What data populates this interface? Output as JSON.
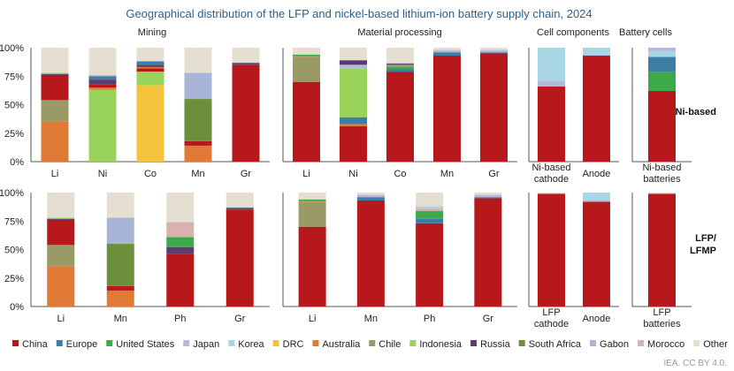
{
  "title": "Geographical distribution of the LFP and nickel-based lithium-ion battery supply chain, 2024",
  "credit": "IEA. CC BY 4.0.",
  "colors": {
    "China": "#b7181c",
    "Europe": "#3d7ea6",
    "United States": "#3caa4a",
    "Japan": "#b3b8dc",
    "Korea": "#a9d6e4",
    "DRC": "#f5c23c",
    "Australia": "#e07a34",
    "Chile": "#9a9a66",
    "Indonesia": "#9ad35a",
    "Russia": "#5b3c6e",
    "South Africa": "#6b8f3a",
    "Gabon": "#a8b5d6",
    "Morocco": "#d9b2b0",
    "Other": "#e4dfd0"
  },
  "legend": [
    "China",
    "Europe",
    "United States",
    "Japan",
    "Korea",
    "DRC",
    "Australia",
    "Chile",
    "Indonesia",
    "Russia",
    "South Africa",
    "Gabon",
    "Morocco",
    "Other"
  ],
  "row_labels": [
    "Ni-based",
    "LFP/\nLFMP"
  ],
  "chart_data": {
    "type": "bar",
    "stacked": true,
    "ylim": [
      0,
      100
    ],
    "yticks": [
      "0%",
      "25%",
      "50%",
      "75%",
      "100%"
    ],
    "sections": [
      "Mining",
      "Material processing",
      "Cell components",
      "Battery cells"
    ],
    "panels": [
      {
        "section": "Mining",
        "row": "Ni-based",
        "categories": [
          "Li",
          "Ni",
          "Co",
          "Mn",
          "Gr"
        ],
        "bars": [
          [
            [
              "Australia",
              35
            ],
            [
              "Chile",
              19
            ],
            [
              "China",
              22
            ],
            [
              "Russia",
              1
            ],
            [
              "Indonesia",
              1
            ],
            [
              "Other",
              22
            ]
          ],
          [
            [
              "Indonesia",
              63
            ],
            [
              "Australia",
              2
            ],
            [
              "China",
              3
            ],
            [
              "Russia",
              4
            ],
            [
              "Europe",
              3
            ],
            [
              "Japan",
              1
            ],
            [
              "Other",
              24
            ]
          ],
          [
            [
              "DRC",
              67
            ],
            [
              "Indonesia",
              12
            ],
            [
              "China",
              3
            ],
            [
              "Australia",
              1
            ],
            [
              "Russia",
              2
            ],
            [
              "Europe",
              3
            ],
            [
              "Other",
              12
            ]
          ],
          [
            [
              "Australia",
              14
            ],
            [
              "China",
              4
            ],
            [
              "South Africa",
              37
            ],
            [
              "Gabon",
              23
            ],
            [
              "Other",
              22
            ]
          ],
          [
            [
              "China",
              85
            ],
            [
              "Russia",
              1
            ],
            [
              "Europe",
              1
            ],
            [
              "Other",
              13
            ]
          ]
        ]
      },
      {
        "section": "Material processing",
        "row": "Ni-based",
        "categories": [
          "Li",
          "Ni",
          "Co",
          "Mn",
          "Gr"
        ],
        "bars": [
          [
            [
              "China",
              70
            ],
            [
              "Chile",
              22
            ],
            [
              "Australia",
              1
            ],
            [
              "United States",
              1
            ],
            [
              "Other",
              6
            ]
          ],
          [
            [
              "China",
              31
            ],
            [
              "Australia",
              2
            ],
            [
              "Europe",
              6
            ],
            [
              "Indonesia",
              43
            ],
            [
              "Japan",
              3
            ],
            [
              "Russia",
              4
            ],
            [
              "Other",
              11
            ]
          ],
          [
            [
              "China",
              79
            ],
            [
              "Europe",
              2
            ],
            [
              "United States",
              2
            ],
            [
              "Chile",
              2
            ],
            [
              "Russia",
              1
            ],
            [
              "Korea",
              1
            ],
            [
              "Other",
              13
            ]
          ],
          [
            [
              "China",
              93
            ],
            [
              "Europe",
              3
            ],
            [
              "Japan",
              2
            ],
            [
              "Other",
              2
            ]
          ],
          [
            [
              "China",
              95
            ],
            [
              "Europe",
              1
            ],
            [
              "Japan",
              2
            ],
            [
              "Other",
              2
            ]
          ]
        ]
      },
      {
        "section": "Cell components",
        "row": "Ni-based",
        "categories": [
          "Ni-based\ncathode",
          "Anode"
        ],
        "bars": [
          [
            [
              "China",
              66
            ],
            [
              "Japan",
              5
            ],
            [
              "Korea",
              29
            ]
          ],
          [
            [
              "China",
              93
            ],
            [
              "Japan",
              1
            ],
            [
              "Korea",
              6
            ]
          ]
        ]
      },
      {
        "section": "Battery cells",
        "row": "Ni-based",
        "categories": [
          "Ni-based\nbatteries"
        ],
        "bars": [
          [
            [
              "China",
              62
            ],
            [
              "United States",
              17
            ],
            [
              "Europe",
              13
            ],
            [
              "Korea",
              5
            ],
            [
              "Japan",
              3
            ]
          ]
        ]
      },
      {
        "section": "Mining",
        "row": "LFP/LFMP",
        "categories": [
          "Li",
          "Mn",
          "Ph",
          "Gr"
        ],
        "bars": [
          [
            [
              "Australia",
              35
            ],
            [
              "Chile",
              19
            ],
            [
              "China",
              22
            ],
            [
              "Russia",
              1
            ],
            [
              "Indonesia",
              1
            ],
            [
              "Other",
              22
            ]
          ],
          [
            [
              "Australia",
              14
            ],
            [
              "China",
              4
            ],
            [
              "South Africa",
              37
            ],
            [
              "Gabon",
              23
            ],
            [
              "Other",
              22
            ]
          ],
          [
            [
              "China",
              46
            ],
            [
              "Russia",
              6
            ],
            [
              "United States",
              9
            ],
            [
              "Morocco",
              13
            ],
            [
              "Other",
              26
            ]
          ],
          [
            [
              "China",
              85
            ],
            [
              "Russia",
              1
            ],
            [
              "Europe",
              1
            ],
            [
              "Other",
              13
            ]
          ]
        ]
      },
      {
        "section": "Material processing",
        "row": "LFP/LFMP",
        "categories": [
          "Li",
          "Mn",
          "Ph",
          "Gr"
        ],
        "bars": [
          [
            [
              "China",
              70
            ],
            [
              "Chile",
              22
            ],
            [
              "Australia",
              1
            ],
            [
              "United States",
              1
            ],
            [
              "Other",
              6
            ]
          ],
          [
            [
              "China",
              93
            ],
            [
              "Europe",
              3
            ],
            [
              "Japan",
              2
            ],
            [
              "Other",
              2
            ]
          ],
          [
            [
              "China",
              73
            ],
            [
              "Europe",
              4
            ],
            [
              "United States",
              6
            ],
            [
              "South Africa",
              1
            ],
            [
              "Morocco",
              2
            ],
            [
              "Korea",
              2
            ],
            [
              "Other",
              12
            ]
          ],
          [
            [
              "China",
              95
            ],
            [
              "Europe",
              1
            ],
            [
              "Japan",
              2
            ],
            [
              "Other",
              2
            ]
          ]
        ]
      },
      {
        "section": "Cell components",
        "row": "LFP/LFMP",
        "categories": [
          "LFP\ncathode",
          "Anode"
        ],
        "bars": [
          [
            [
              "China",
              99
            ],
            [
              "Other",
              1
            ]
          ],
          [
            [
              "China",
              92
            ],
            [
              "Japan",
              1
            ],
            [
              "Korea",
              7
            ]
          ]
        ]
      },
      {
        "section": "Battery cells",
        "row": "LFP/LFMP",
        "categories": [
          "LFP\nbatteries"
        ],
        "bars": [
          [
            [
              "China",
              99
            ],
            [
              "Other",
              1
            ]
          ]
        ]
      }
    ]
  }
}
